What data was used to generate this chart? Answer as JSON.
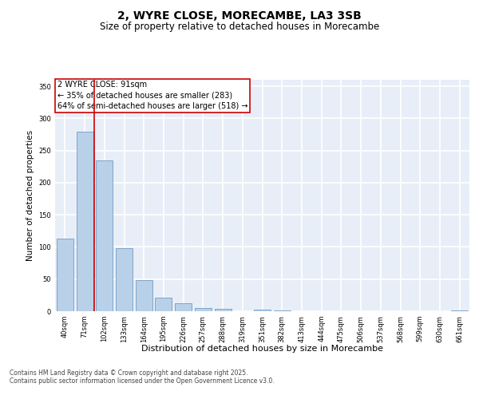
{
  "title": "2, WYRE CLOSE, MORECAMBE, LA3 3SB",
  "subtitle": "Size of property relative to detached houses in Morecambe",
  "xlabel": "Distribution of detached houses by size in Morecambe",
  "ylabel": "Number of detached properties",
  "categories": [
    "40sqm",
    "71sqm",
    "102sqm",
    "133sqm",
    "164sqm",
    "195sqm",
    "226sqm",
    "257sqm",
    "288sqm",
    "319sqm",
    "351sqm",
    "382sqm",
    "413sqm",
    "444sqm",
    "475sqm",
    "506sqm",
    "537sqm",
    "568sqm",
    "599sqm",
    "630sqm",
    "661sqm"
  ],
  "values": [
    113,
    279,
    235,
    98,
    49,
    21,
    13,
    5,
    4,
    0,
    2,
    1,
    0,
    0,
    0,
    0,
    0,
    0,
    0,
    0,
    1
  ],
  "bar_color": "#b8d0e8",
  "bar_edge_color": "#6090b8",
  "vline_x": 1.5,
  "vline_color": "#cc0000",
  "annotation_text": "2 WYRE CLOSE: 91sqm\n← 35% of detached houses are smaller (283)\n64% of semi-detached houses are larger (518) →",
  "annotation_box_color": "#ffffff",
  "annotation_box_edge": "#cc0000",
  "ylim": [
    0,
    360
  ],
  "yticks": [
    0,
    50,
    100,
    150,
    200,
    250,
    300,
    350
  ],
  "background_color": "#e8eef8",
  "grid_color": "#ffffff",
  "footer_text": "Contains HM Land Registry data © Crown copyright and database right 2025.\nContains public sector information licensed under the Open Government Licence v3.0.",
  "title_fontsize": 10,
  "subtitle_fontsize": 8.5,
  "xlabel_fontsize": 8,
  "ylabel_fontsize": 7.5,
  "tick_fontsize": 6,
  "annotation_fontsize": 7,
  "footer_fontsize": 5.5
}
